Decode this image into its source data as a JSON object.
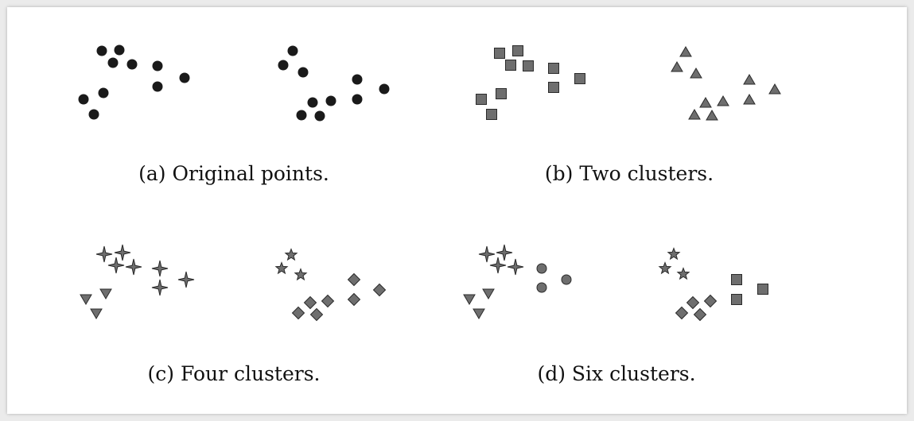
{
  "colors": {
    "background": "#ebebeb",
    "card": "#ffffff",
    "black_marker": "#1a1a1a",
    "gray_marker": "#6e6e6e",
    "marker_outline": "#2b2b2b"
  },
  "panels": [
    {
      "id": "a",
      "caption": "(a) Original points.",
      "groups": [
        {
          "marker": "circle-black",
          "points": [
            [
              128,
              64
            ],
            [
              150,
              63
            ],
            [
              142,
              79
            ],
            [
              166,
              81
            ],
            [
              198,
              83
            ],
            [
              232,
              98
            ],
            [
              198,
              109
            ],
            [
              130,
              117
            ],
            [
              105,
              125
            ],
            [
              118,
              144
            ]
          ]
        },
        {
          "marker": "circle-black",
          "points": [
            [
              368,
              64
            ],
            [
              356,
              82
            ],
            [
              381,
              91
            ],
            [
              449,
              100
            ],
            [
              483,
              112
            ],
            [
              449,
              125
            ],
            [
              393,
              129
            ],
            [
              416,
              127
            ],
            [
              379,
              145
            ],
            [
              402,
              146
            ]
          ]
        }
      ]
    },
    {
      "id": "b",
      "caption": "(b) Two clusters.",
      "groups": [
        {
          "marker": "square",
          "points": [
            [
              628,
              67
            ],
            [
              651,
              64
            ],
            [
              642,
              82
            ],
            [
              664,
              83
            ],
            [
              696,
              86
            ],
            [
              729,
              99
            ],
            [
              696,
              110
            ],
            [
              630,
              118
            ],
            [
              605,
              125
            ],
            [
              618,
              144
            ]
          ]
        },
        {
          "marker": "triangle-up",
          "points": [
            [
              862,
              66
            ],
            [
              851,
              85
            ],
            [
              875,
              93
            ],
            [
              942,
              101
            ],
            [
              974,
              113
            ],
            [
              942,
              126
            ],
            [
              887,
              130
            ],
            [
              909,
              128
            ],
            [
              873,
              145
            ],
            [
              895,
              146
            ]
          ]
        }
      ]
    },
    {
      "id": "c",
      "caption": "(c) Four clusters.",
      "groups": [
        {
          "marker": "star4",
          "points": [
            [
              131,
              320
            ],
            [
              154,
              318
            ],
            [
              146,
              334
            ],
            [
              168,
              336
            ],
            [
              201,
              338
            ],
            [
              234,
              352
            ],
            [
              201,
              362
            ]
          ]
        },
        {
          "marker": "triangle-down",
          "points": [
            [
              133,
              369
            ],
            [
              108,
              376
            ],
            [
              121,
              394
            ]
          ]
        },
        {
          "marker": "star5",
          "points": [
            [
              366,
              321
            ],
            [
              354,
              338
            ],
            [
              378,
              346
            ]
          ]
        },
        {
          "marker": "diamond",
          "points": [
            [
              445,
              352
            ],
            [
              477,
              365
            ],
            [
              445,
              377
            ],
            [
              390,
              381
            ],
            [
              412,
              379
            ],
            [
              375,
              394
            ],
            [
              398,
              396
            ]
          ]
        }
      ]
    },
    {
      "id": "d",
      "caption": "(d) Six clusters.",
      "groups": [
        {
          "marker": "star4",
          "points": [
            [
              612,
              320
            ],
            [
              634,
              318
            ],
            [
              626,
              334
            ],
            [
              648,
              336
            ]
          ]
        },
        {
          "marker": "circle-gray",
          "points": [
            [
              681,
              338
            ],
            [
              712,
              352
            ],
            [
              681,
              362
            ]
          ]
        },
        {
          "marker": "triangle-down",
          "points": [
            [
              614,
              369
            ],
            [
              590,
              376
            ],
            [
              602,
              394
            ]
          ]
        },
        {
          "marker": "star5",
          "points": [
            [
              847,
              320
            ],
            [
              836,
              338
            ],
            [
              859,
              345
            ]
          ]
        },
        {
          "marker": "square",
          "points": [
            [
              926,
              352
            ],
            [
              959,
              364
            ],
            [
              926,
              377
            ]
          ]
        },
        {
          "marker": "diamond",
          "points": [
            [
              871,
              381
            ],
            [
              893,
              379
            ],
            [
              857,
              394
            ],
            [
              880,
              396
            ]
          ]
        }
      ]
    }
  ],
  "caption_positions_note": ""
}
